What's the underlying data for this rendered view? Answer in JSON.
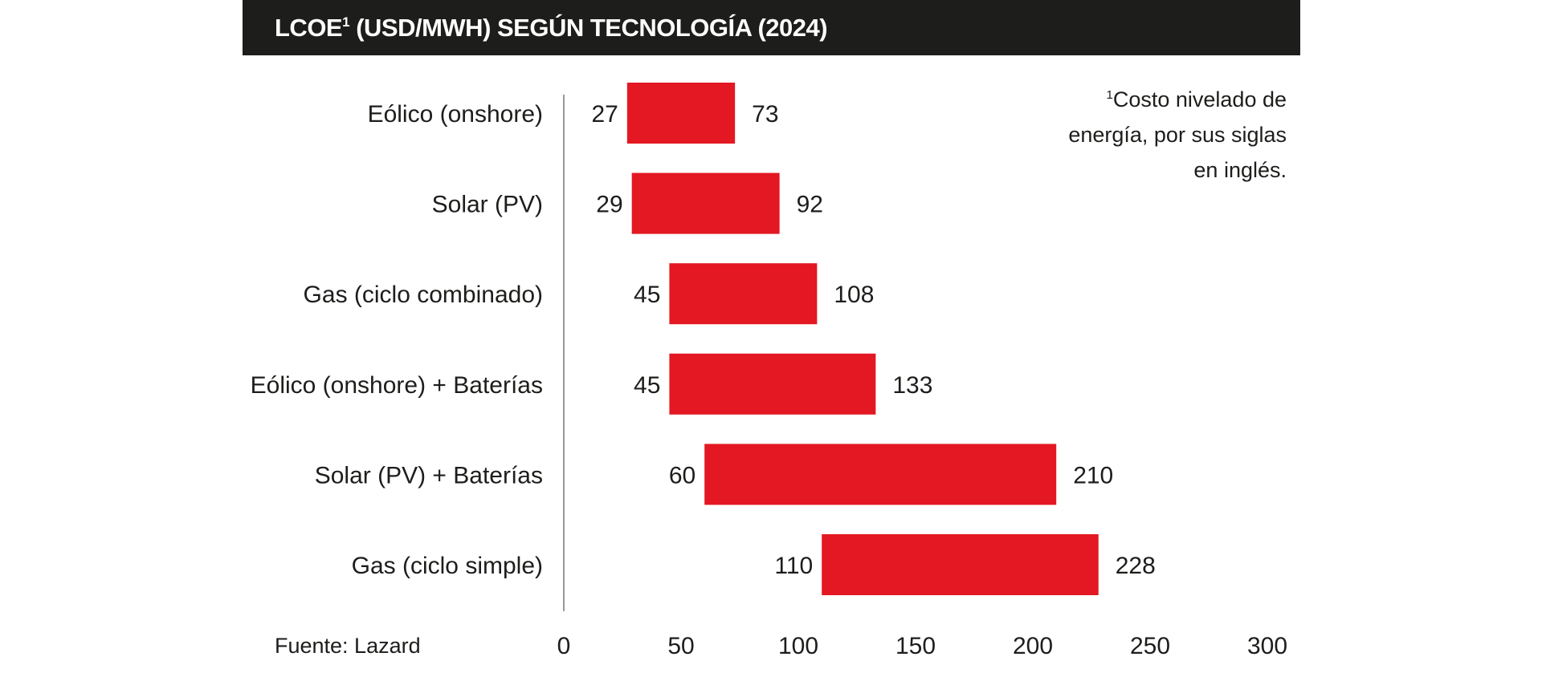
{
  "header": {
    "title_prefix": "LCOE",
    "title_sup": "1",
    "title_rest": " (USD/MWH) SEGÚN TECNOLOGÍA (2024)"
  },
  "footnote": {
    "marker": "1",
    "text": "Costo nivelado de energía, por sus siglas en inglés."
  },
  "source": "Fuente: Lazard",
  "colors": {
    "bar": "#e31822",
    "header_background": "#1d1d1b",
    "header_text": "#ffffff",
    "axis_line": "#9a9a9a",
    "text": "#1d1d1b"
  },
  "chart_data": {
    "type": "bar",
    "orientation": "horizontal",
    "subtype": "floating-range",
    "title": "LCOE¹ (USD/MWH) SEGÚN TECNOLOGÍA (2024)",
    "xlabel": "",
    "ylabel": "",
    "xlim": [
      0,
      300
    ],
    "xticks": [
      0,
      50,
      100,
      150,
      200,
      250,
      300
    ],
    "grid": false,
    "categories": [
      "Eólico (onshore)",
      "Solar (PV)",
      "Gas (ciclo combinado)",
      "Eólico (onshore) + Baterías",
      "Solar (PV) + Baterías",
      "Gas (ciclo simple)"
    ],
    "low": [
      27,
      29,
      45,
      45,
      60,
      110
    ],
    "high": [
      73,
      92,
      108,
      133,
      210,
      228
    ]
  }
}
